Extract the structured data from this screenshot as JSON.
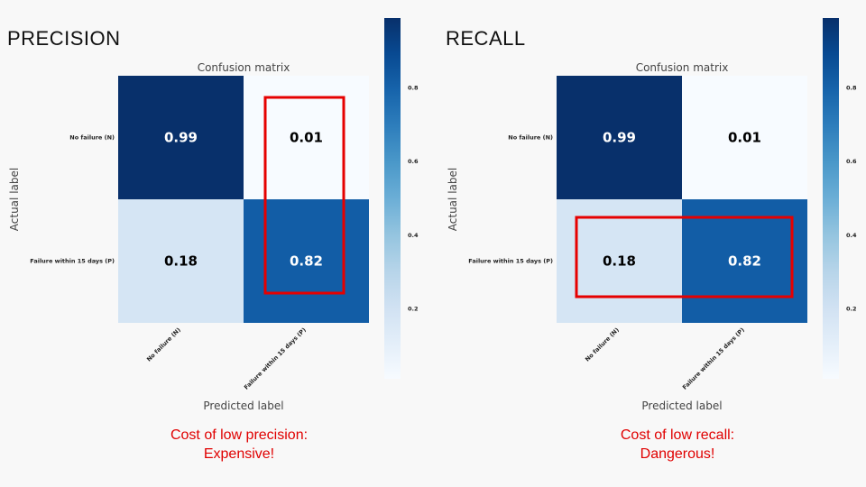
{
  "panels": [
    {
      "heading": "PRECISION",
      "caption_line1": "Cost of low precision:",
      "caption_line2": "Expensive!",
      "highlight": "column",
      "highlight_color": "#e60000"
    },
    {
      "heading": "RECALL",
      "caption_line1": "Cost of low recall:",
      "caption_line2": "Dangerous!",
      "highlight": "row",
      "highlight_color": "#e60000"
    }
  ],
  "chart_data": [
    {
      "type": "heatmap",
      "title": "Confusion matrix",
      "xlabel": "Predicted label",
      "ylabel": "Actual label",
      "row_labels": [
        "No failure (N)",
        "Failure within 15 days (P)"
      ],
      "col_labels": [
        "No failure (N)",
        "Failure within 15 days (P)"
      ],
      "values": [
        [
          0.99,
          0.01
        ],
        [
          0.18,
          0.82
        ]
      ],
      "colorbar_ticks": [
        "0.2",
        "0.4",
        "0.6",
        "0.8"
      ],
      "colorbar_range": [
        0.01,
        0.99
      ],
      "colormap": "Blues"
    },
    {
      "type": "heatmap",
      "title": "Confusion matrix",
      "xlabel": "Predicted label",
      "ylabel": "Actual label",
      "row_labels": [
        "No failure (N)",
        "Failure within 15 days (P)"
      ],
      "col_labels": [
        "No failure (N)",
        "Failure within 15 days (P)"
      ],
      "values": [
        [
          0.99,
          0.01
        ],
        [
          0.18,
          0.82
        ]
      ],
      "colorbar_ticks": [
        "0.2",
        "0.4",
        "0.6",
        "0.8"
      ],
      "colorbar_range": [
        0.01,
        0.99
      ],
      "colormap": "Blues"
    }
  ]
}
